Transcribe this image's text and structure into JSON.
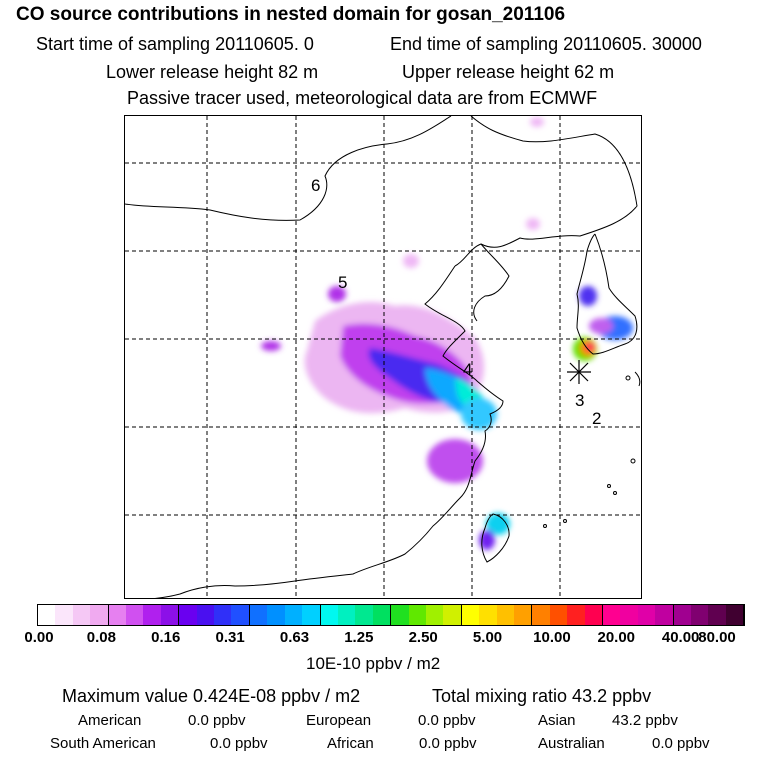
{
  "title": "CO  source contributions in nested domain for gosan_201106",
  "start_time": "Start time of sampling 20110605.      0",
  "end_time": "End time of sampling 20110605. 30000",
  "lower_release": "Lower release height   82 m",
  "upper_release": "Upper release height   62 m",
  "tracer_note": "Passive tracer used, meteorological data are from ECMWF",
  "map": {
    "contour_labels": [
      "6",
      "5",
      "4",
      "3",
      "2"
    ],
    "station_marker": "receptor-star"
  },
  "colorbar": {
    "ticks": [
      "0.00",
      "0.08",
      "0.16",
      "0.31",
      "0.63",
      "1.25",
      "2.50",
      "5.00",
      "10.00",
      "20.00",
      "40.00",
      "80.00"
    ],
    "units": "10E-10 ppbv / m2",
    "colors": [
      "#ffffff",
      "#fbe6fb",
      "#f5c8f5",
      "#f0aaf0",
      "#e680f0",
      "#d050f0",
      "#b020ee",
      "#8c10e8",
      "#6a00f0",
      "#4a10f0",
      "#3030f8",
      "#2050ff",
      "#1070ff",
      "#0090ff",
      "#00b0ff",
      "#00d0ff",
      "#00f8f0",
      "#00f0c0",
      "#00e890",
      "#00e060",
      "#20e020",
      "#60e800",
      "#a0f000",
      "#d0f000",
      "#ffff00",
      "#ffe000",
      "#ffc000",
      "#ffa000",
      "#ff8000",
      "#ff5000",
      "#ff2020",
      "#ff0050",
      "#ff0090",
      "#f000a0",
      "#e000a8",
      "#c000a0",
      "#a00090",
      "#800070",
      "#600050",
      "#400030"
    ]
  },
  "stats": {
    "maximum": "Maximum value  0.424E-08 ppbv / m2",
    "total": "Total mixing ratio        43.2 ppbv"
  },
  "regions": [
    {
      "name": "American",
      "value": "0.0 ppbv"
    },
    {
      "name": "European",
      "value": "0.0 ppbv"
    },
    {
      "name": "Asian",
      "value": "43.2 ppbv"
    },
    {
      "name": "South American",
      "value": "0.0 ppbv"
    },
    {
      "name": "African",
      "value": "0.0 ppbv"
    },
    {
      "name": "Australian",
      "value": "0.0 ppbv"
    }
  ]
}
